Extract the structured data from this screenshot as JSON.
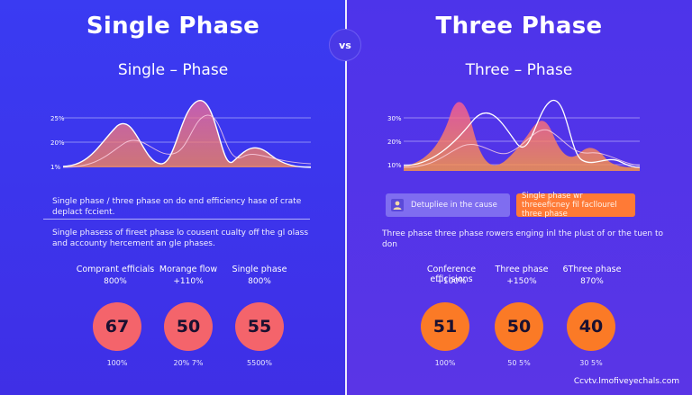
{
  "vs_label": "vs",
  "left": {
    "title": "Single Phase",
    "subtitle": "Single – Phase",
    "y_ticks": [
      "25%",
      "20%",
      "1%"
    ],
    "desc1": "Single phase / three phase on do end efficiency hase of crate deplact fccient.",
    "desc2": "Single phasess of fireet phase lo cousent cualty off the gl olass and accounty hercement an gle phases.",
    "metrics": [
      {
        "label": "Comprant efficials",
        "value": "800%",
        "circle": "67",
        "foot": "100%"
      },
      {
        "label": "Morange flow",
        "value": "+110%",
        "circle": "50",
        "foot": "20% 7%"
      },
      {
        "label": "Single phase",
        "value": "800%",
        "circle": "55",
        "foot": "5500%"
      }
    ]
  },
  "right": {
    "title": "Three Phase",
    "subtitle": "Three – Phase",
    "y_ticks": [
      "30%",
      "20%",
      "10%"
    ],
    "button1": "Detupliee in the cause",
    "button2": "Single phase wr threeeficney fil facllourel three phase",
    "desc": "Three phase three phase rowers enging inl the plust of or the tuen to don",
    "metrics": [
      {
        "label": "Conference efficisions",
        "value": "+100%",
        "circle": "51",
        "foot": "100%"
      },
      {
        "label": "Three phase",
        "value": "+150%",
        "circle": "50",
        "foot": "50 5%"
      },
      {
        "label": "6Three phase",
        "value": "870%",
        "circle": "40",
        "foot": "30 5%"
      }
    ]
  },
  "watermark": "Ccvtv.lmofiveyechals.com",
  "colors": {
    "left_bg": "#3a3bf2",
    "right_bg": "#5a35e6",
    "red_circle": "#f4646b",
    "orange_circle": "#fb7a26"
  }
}
